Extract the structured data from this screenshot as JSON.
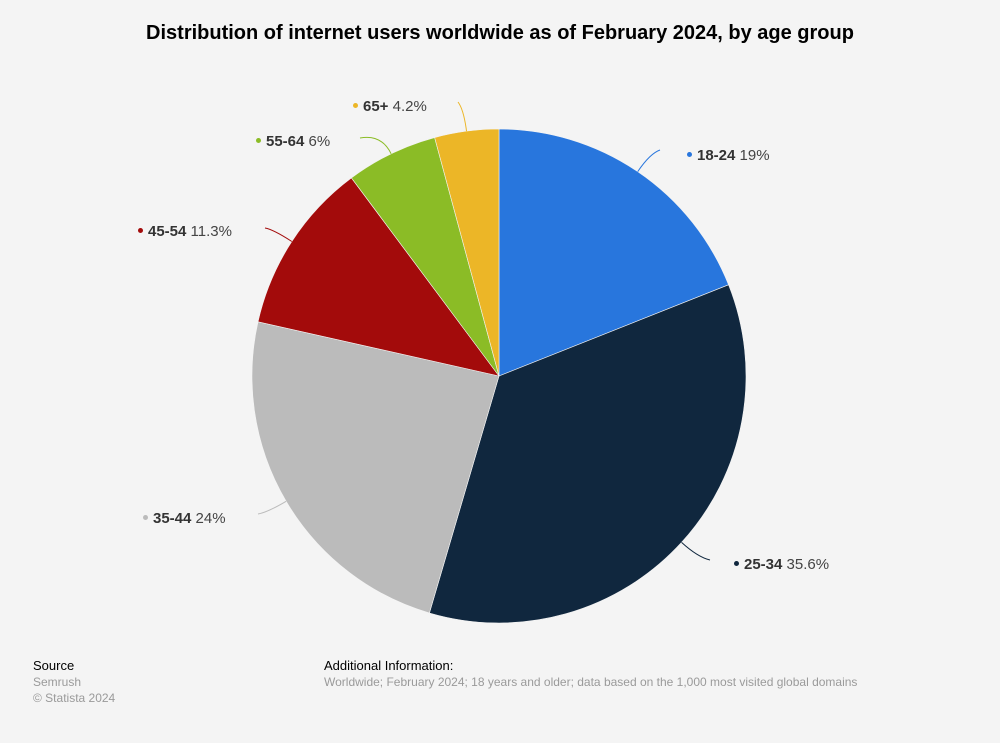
{
  "chart_data": {
    "type": "pie",
    "title": "Distribution of internet users worldwide as of February 2024, by age group",
    "categories": [
      "18-24",
      "25-34",
      "35-44",
      "45-54",
      "55-64",
      "65+"
    ],
    "values": [
      19,
      35.6,
      24,
      11.3,
      6,
      4.2
    ],
    "value_labels": [
      "19%",
      "35.6%",
      "24%",
      "11.3%",
      "6%",
      "4.2%"
    ],
    "colors": [
      "#2876dd",
      "#10273e",
      "#bbbbbb",
      "#a30b0b",
      "#8bbc26",
      "#ecb627"
    ],
    "start_angle": "top, clockwise"
  },
  "footer": {
    "source_label": "Source",
    "source": "Semrush",
    "copyright": "© Statista 2024",
    "info_label": "Additional Information:",
    "info": "Worldwide; February 2024; 18 years and older; data based on the 1,000 most visited global domains"
  }
}
